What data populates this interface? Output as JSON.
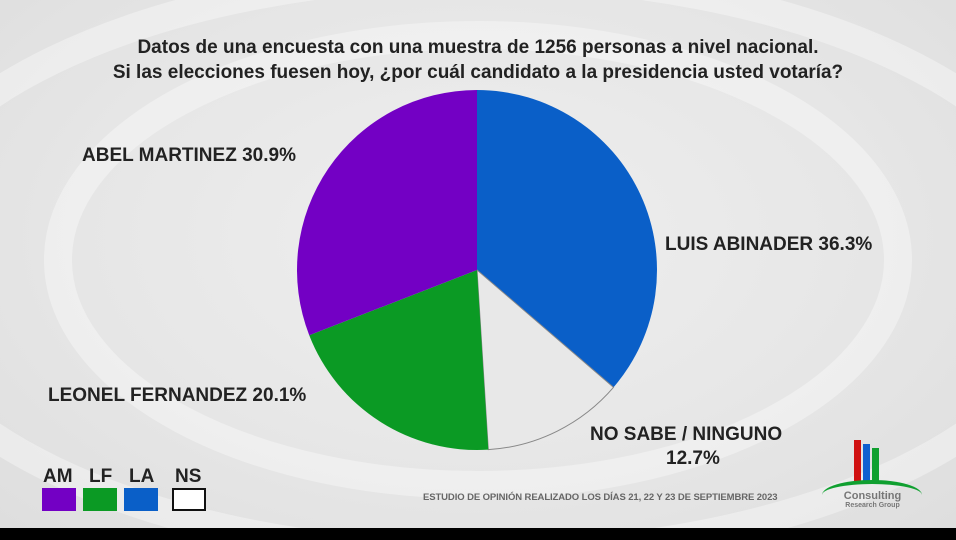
{
  "chart_data": {
    "type": "pie",
    "title": "Datos de una encuesta con una muestra de 1256 personas a nivel nacional.",
    "subtitle": "Si las elecciones fuesen hoy, ¿por cuál candidato a la presidencia usted votaría?",
    "slices": [
      {
        "label": "LUIS ABINADER",
        "code": "LA",
        "value": 36.3,
        "value_label": "36.3%",
        "color": "#0a5fc8"
      },
      {
        "label": "NO SABE / NINGUNO",
        "code": "NS",
        "value": 12.7,
        "value_label": "12.7%",
        "color": "#e8e8e8"
      },
      {
        "label": "LEONEL FERNANDEZ",
        "code": "LF",
        "value": 20.1,
        "value_label": "20.1%",
        "color": "#0b9a24"
      },
      {
        "label": "ABEL MARTINEZ",
        "code": "AM",
        "value": 30.9,
        "value_label": "30.9%",
        "color": "#7300c4"
      }
    ],
    "legend": [
      "AM",
      "LF",
      "LA",
      "NS"
    ],
    "legend_placement": "bottom-left"
  },
  "labels": {
    "am": "ABEL MARTINEZ 30.9%",
    "la": "LUIS ABINADER 36.3%",
    "lf": "LEONEL FERNANDEZ 20.1%",
    "ns_line1": "NO SABE / NINGUNO",
    "ns_line2": "12.7%"
  },
  "footer": "ESTUDIO DE OPINIÓN REALIZADO LOS DÍAS 21, 22 Y 23 DE SEPTIEMBRE 2023",
  "logo": {
    "line1": "Consulting",
    "line2": "Research Group"
  }
}
